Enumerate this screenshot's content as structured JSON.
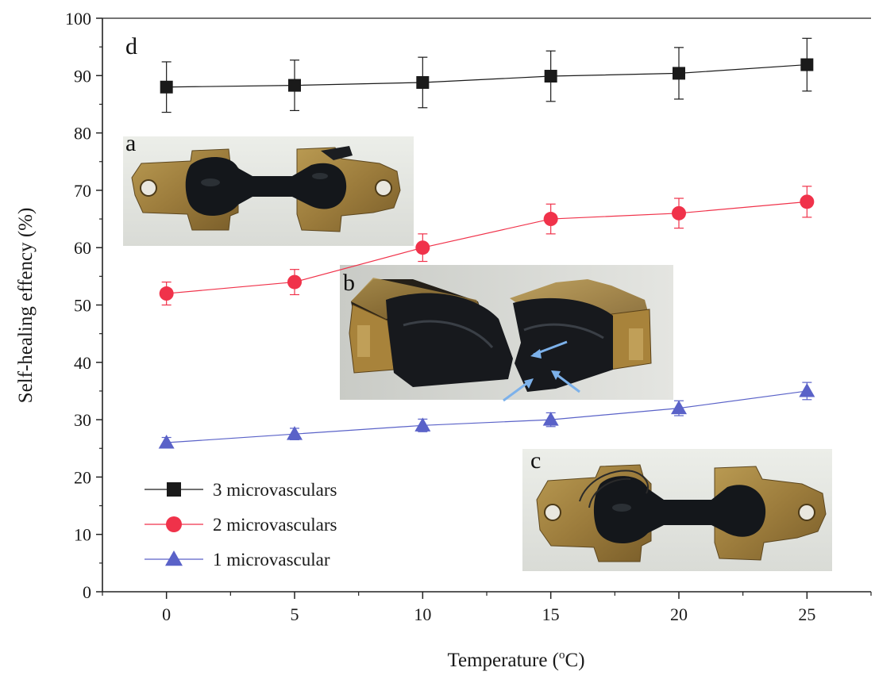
{
  "chart_data": {
    "type": "line",
    "title": "",
    "xlabel": "Temperature (",
    "xlabel_unit_sup": "o",
    "xlabel_unit_tail": "C)",
    "ylabel": "Self-healing effency (%)",
    "x": [
      0,
      5,
      10,
      15,
      20,
      25
    ],
    "xlim": [
      -2.5,
      27.5
    ],
    "ylim": [
      0,
      100
    ],
    "x_ticks": [
      "0",
      "5",
      "10",
      "15",
      "20",
      "25"
    ],
    "y_ticks": [
      "0",
      "10",
      "20",
      "30",
      "40",
      "50",
      "60",
      "70",
      "80",
      "90",
      "100"
    ],
    "grid": false,
    "legend_placement": "bottom-left",
    "series": [
      {
        "name": "3 microvasculars",
        "marker": "square",
        "color": "#1a1a1a",
        "values": [
          88,
          88.3,
          88.8,
          89.9,
          90.4,
          91.9
        ],
        "errors": [
          4.4,
          4.4,
          4.4,
          4.4,
          4.5,
          4.6
        ]
      },
      {
        "name": "2 microvasculars",
        "marker": "circle",
        "color": "#f0324a",
        "values": [
          52,
          54,
          60,
          65,
          66,
          68
        ],
        "errors": [
          2.0,
          2.2,
          2.4,
          2.6,
          2.6,
          2.7
        ]
      },
      {
        "name": "1 microvascular",
        "marker": "triangle",
        "color": "#5a62c8",
        "values": [
          26,
          27.5,
          29,
          30,
          32,
          35
        ],
        "errors": [
          0.9,
          1.0,
          1.1,
          1.2,
          1.3,
          1.5
        ]
      }
    ]
  },
  "panels": {
    "a": "a",
    "b": "b",
    "c": "c",
    "d": "d"
  }
}
